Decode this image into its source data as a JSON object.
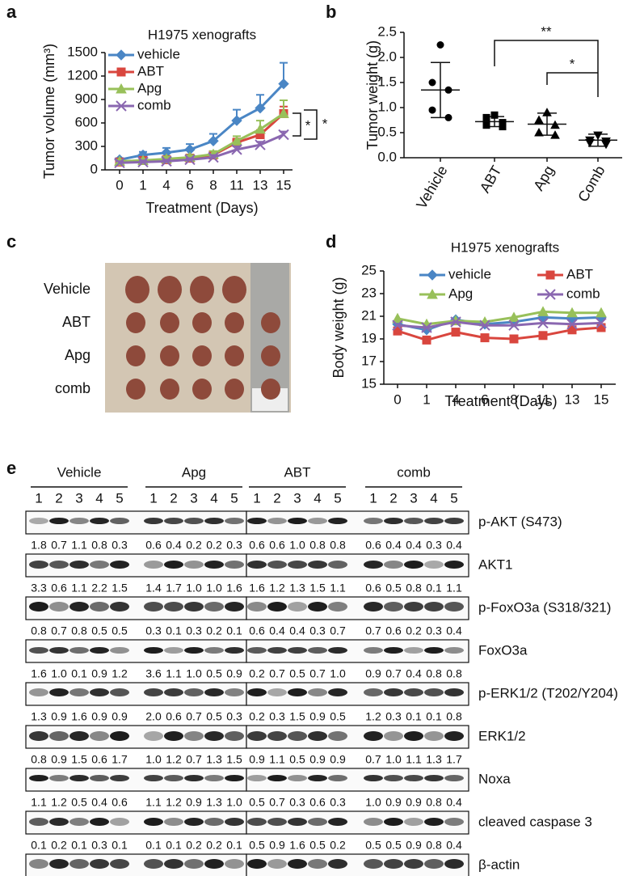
{
  "panel_labels": [
    "a",
    "b",
    "c",
    "d",
    "e"
  ],
  "chart_data": [
    {
      "type": "line",
      "title": "H1975 xenografts",
      "xlabel": "Treatment (Days)",
      "ylabel": "Tumor volume (mm³)",
      "categories": [
        "0",
        "1",
        "4",
        "6",
        "8",
        "11",
        "13",
        "15"
      ],
      "ylim": [
        0,
        1500
      ],
      "yticks": [
        0,
        300,
        600,
        900,
        1200,
        1500
      ],
      "legend": "top-left",
      "series": [
        {
          "name": "vehicle",
          "color": "#4a86c5",
          "marker": "diamond",
          "values": [
            130,
            190,
            220,
            260,
            370,
            630,
            790,
            1100
          ],
          "errors": [
            20,
            40,
            60,
            70,
            90,
            140,
            170,
            270
          ]
        },
        {
          "name": "ABT",
          "color": "#d9463e",
          "marker": "square",
          "values": [
            100,
            120,
            130,
            150,
            190,
            350,
            450,
            720
          ],
          "errors": [
            20,
            20,
            20,
            30,
            30,
            50,
            60,
            90
          ]
        },
        {
          "name": "Apg",
          "color": "#98c05a",
          "marker": "triangle",
          "values": [
            110,
            120,
            140,
            160,
            200,
            370,
            520,
            720
          ],
          "errors": [
            20,
            20,
            30,
            30,
            40,
            60,
            110,
            170
          ]
        },
        {
          "name": "comb",
          "color": "#8a67b0",
          "marker": "x",
          "values": [
            90,
            100,
            110,
            130,
            160,
            260,
            320,
            450
          ],
          "errors": [
            20,
            20,
            20,
            20,
            30,
            40,
            40,
            40
          ]
        }
      ],
      "annotations": [
        "*",
        "*"
      ]
    },
    {
      "type": "dot",
      "ylabel": "Tumor weight (g)",
      "categories": [
        "Vehicle",
        "ABT",
        "Apg",
        "Comb"
      ],
      "ylim": [
        0,
        2.5
      ],
      "yticks": [
        {
          "value": 0,
          "label": "0.0"
        },
        {
          "value": 0.5,
          "label": "0.5"
        },
        {
          "value": 1,
          "label": "1.0"
        },
        {
          "value": 1.5,
          "label": "1.5"
        },
        {
          "value": 2,
          "label": "2.0"
        },
        {
          "value": 2.5,
          "label": "2.5"
        }
      ],
      "color": "#000000",
      "markers": [
        "circle",
        "square",
        "triangle",
        "triangle-down"
      ],
      "points": [
        [
          2.25,
          1.5,
          1.35,
          0.95,
          0.8
        ],
        [
          0.85,
          0.8,
          0.7,
          0.65,
          0.62
        ],
        [
          0.9,
          0.75,
          0.65,
          0.5,
          0.45
        ],
        [
          0.45,
          0.35,
          0.33,
          0.3,
          0.27
        ]
      ],
      "means": [
        1.35,
        0.72,
        0.67,
        0.35
      ],
      "sds": [
        0.55,
        0.1,
        0.22,
        0.12
      ],
      "annotations": [
        "**",
        "*"
      ]
    },
    {
      "type": "line",
      "title": "H1975 xenografts",
      "xlabel": "Treatment (Days)",
      "ylabel": "Body weight (g)",
      "categories": [
        "0",
        "1",
        "4",
        "6",
        "8",
        "11",
        "13",
        "15"
      ],
      "ylim": [
        15,
        25
      ],
      "yticks": [
        15,
        17,
        19,
        21,
        23,
        25
      ],
      "legend": "top",
      "series": [
        {
          "name": "vehicle",
          "color": "#4a86c5",
          "marker": "diamond",
          "values": [
            20.3,
            19.8,
            20.7,
            20.3,
            20.5,
            20.9,
            20.8,
            20.9
          ]
        },
        {
          "name": "ABT",
          "color": "#d9463e",
          "marker": "square",
          "values": [
            19.7,
            18.9,
            19.6,
            19.1,
            19.0,
            19.3,
            19.8,
            20.0
          ]
        },
        {
          "name": "Apg",
          "color": "#98c05a",
          "marker": "triangle",
          "values": [
            20.8,
            20.3,
            20.6,
            20.5,
            20.9,
            21.4,
            21.3,
            21.3
          ]
        },
        {
          "name": "comb",
          "color": "#8a67b0",
          "marker": "x",
          "values": [
            20.2,
            20.0,
            20.5,
            20.2,
            20.2,
            20.4,
            20.3,
            20.4
          ]
        }
      ]
    }
  ],
  "photo": {
    "row_labels": [
      "Vehicle",
      "ABT",
      "Apg",
      "comb"
    ]
  },
  "blot": {
    "groups": [
      "Vehicle",
      "Apg",
      "ABT",
      "comb"
    ],
    "lanes": [
      "1",
      "2",
      "3",
      "4",
      "5"
    ],
    "rows": [
      {
        "label": "p-AKT (S473)",
        "values": [
          "1.8",
          "0.7",
          "1.1",
          "0.8",
          "0.3",
          "0.6",
          "0.4",
          "0.2",
          "0.2",
          "0.3",
          "0.6",
          "0.6",
          "1.0",
          "0.8",
          "0.8",
          "0.6",
          "0.4",
          "0.4",
          "0.3",
          "0.4"
        ]
      },
      {
        "label": "AKT1",
        "values": [
          "3.3",
          "0.6",
          "1.1",
          "2.2",
          "1.5",
          "1.4",
          "1.7",
          "1.0",
          "1.0",
          "1.6",
          "1.6",
          "1.2",
          "1.3",
          "1.5",
          "1.1",
          "0.6",
          "0.5",
          "0.8",
          "0.1",
          "1.1"
        ]
      },
      {
        "label": "p-FoxO3a (S318/321)",
        "values": [
          "0.8",
          "0.7",
          "0.8",
          "0.5",
          "0.5",
          "0.3",
          "0.1",
          "0.3",
          "0.2",
          "0.1",
          "0.6",
          "0.4",
          "0.4",
          "0.3",
          "0.7",
          "0.7",
          "0.6",
          "0.2",
          "0.3",
          "0.4"
        ]
      },
      {
        "label": "FoxO3a",
        "values": [
          "1.6",
          "1.0",
          "0.1",
          "0.9",
          "1.2",
          "3.6",
          "1.1",
          "1.0",
          "0.5",
          "0.9",
          "0.2",
          "0.7",
          "0.5",
          "0.7",
          "1.0",
          "0.9",
          "0.7",
          "0.4",
          "0.8",
          "0.8"
        ]
      },
      {
        "label": "p-ERK1/2 (T202/Y204)",
        "values": [
          "1.3",
          "0.9",
          "1.6",
          "0.9",
          "0.9",
          "2.0",
          "0.6",
          "0.7",
          "0.5",
          "0.3",
          "0.2",
          "0.3",
          "1.5",
          "0.9",
          "0.5",
          "1.2",
          "0.3",
          "0.1",
          "0.1",
          "0.8"
        ]
      },
      {
        "label": "ERK1/2",
        "values": [
          "0.8",
          "0.9",
          "1.5",
          "0.6",
          "1.7",
          "1.0",
          "1.2",
          "0.7",
          "1.3",
          "1.5",
          "0.9",
          "1.1",
          "0.5",
          "0.9",
          "0.9",
          "0.7",
          "1.0",
          "1.1",
          "1.3",
          "1.7"
        ]
      },
      {
        "label": "Noxa",
        "values": [
          "1.1",
          "1.2",
          "0.5",
          "0.4",
          "0.6",
          "1.1",
          "1.2",
          "0.9",
          "1.3",
          "1.0",
          "0.5",
          "0.7",
          "0.3",
          "0.6",
          "0.3",
          "1.0",
          "0.9",
          "0.9",
          "0.8",
          "0.4"
        ]
      },
      {
        "label": "cleaved caspase 3",
        "values": [
          "0.1",
          "0.2",
          "0.1",
          "0.3",
          "0.1",
          "0.1",
          "0.1",
          "0.2",
          "0.2",
          "0.1",
          "0.5",
          "0.9",
          "1.6",
          "0.5",
          "0.2",
          "0.5",
          "0.5",
          "0.9",
          "0.8",
          "0.4"
        ]
      },
      {
        "label": "β-actin",
        "values": []
      }
    ]
  }
}
